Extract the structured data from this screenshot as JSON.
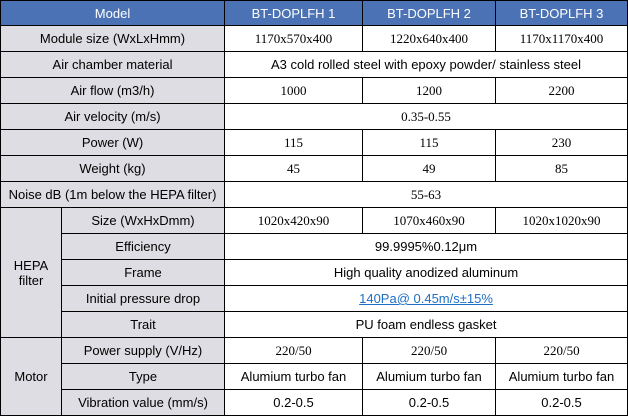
{
  "header": {
    "model_label": "Model",
    "models": [
      "BT-DOPLFH 1",
      "BT-DOPLFH 2",
      "BT-DOPLFH 3"
    ]
  },
  "rows": {
    "module_size": {
      "label": "Module size (WxLxHmm)",
      "values": [
        "1170x570x400",
        "1220x640x400",
        "1170x1170x400"
      ]
    },
    "air_chamber": {
      "label": "Air chamber material",
      "value": "A3 cold rolled steel with epoxy powder/ stainless steel"
    },
    "air_flow": {
      "label": "Air flow (m3/h)",
      "values": [
        "1000",
        "1200",
        "2200"
      ]
    },
    "air_velocity": {
      "label": "Air velocity (m/s)",
      "value": "0.35-0.55"
    },
    "power": {
      "label": "Power (W)",
      "values": [
        "115",
        "115",
        "230"
      ]
    },
    "weight": {
      "label": "Weight (kg)",
      "values": [
        "45",
        "49",
        "85"
      ]
    },
    "noise": {
      "label": "Noise dB (1m below the HEPA filter)",
      "value": "55-63"
    }
  },
  "hepa": {
    "group_label_line1": "HEPA",
    "group_label_line2": "filter",
    "size": {
      "label": "Size (WxHxDmm)",
      "values": [
        "1020x420x90",
        "1070x460x90",
        "1020x1020x90"
      ]
    },
    "efficiency": {
      "label": "Efficiency",
      "value": "99.9995%0.12μm"
    },
    "frame": {
      "label": "Frame",
      "value": "High quality anodized aluminum"
    },
    "pressure_drop": {
      "label": "Initial pressure drop",
      "value": "140Pa@ 0.45m/s±15%"
    },
    "trait": {
      "label": "Trait",
      "value": "PU foam endless gasket"
    }
  },
  "motor": {
    "group_label": "Motor",
    "power_supply": {
      "label": "Power supply (V/Hz)",
      "values": [
        "220/50",
        "220/50",
        "220/50"
      ]
    },
    "type": {
      "label": "Type",
      "values": [
        "Alumium turbo fan",
        "Alumium turbo fan",
        "Alumium turbo fan"
      ]
    },
    "vibration": {
      "label": "Vibration value (mm/s)",
      "values": [
        "0.2-0.5",
        "0.2-0.5",
        "0.2-0.5"
      ]
    }
  },
  "colors": {
    "header_bg": "#4a72b4",
    "label_bg": "#dddde3",
    "link": "#1f6fc4"
  }
}
